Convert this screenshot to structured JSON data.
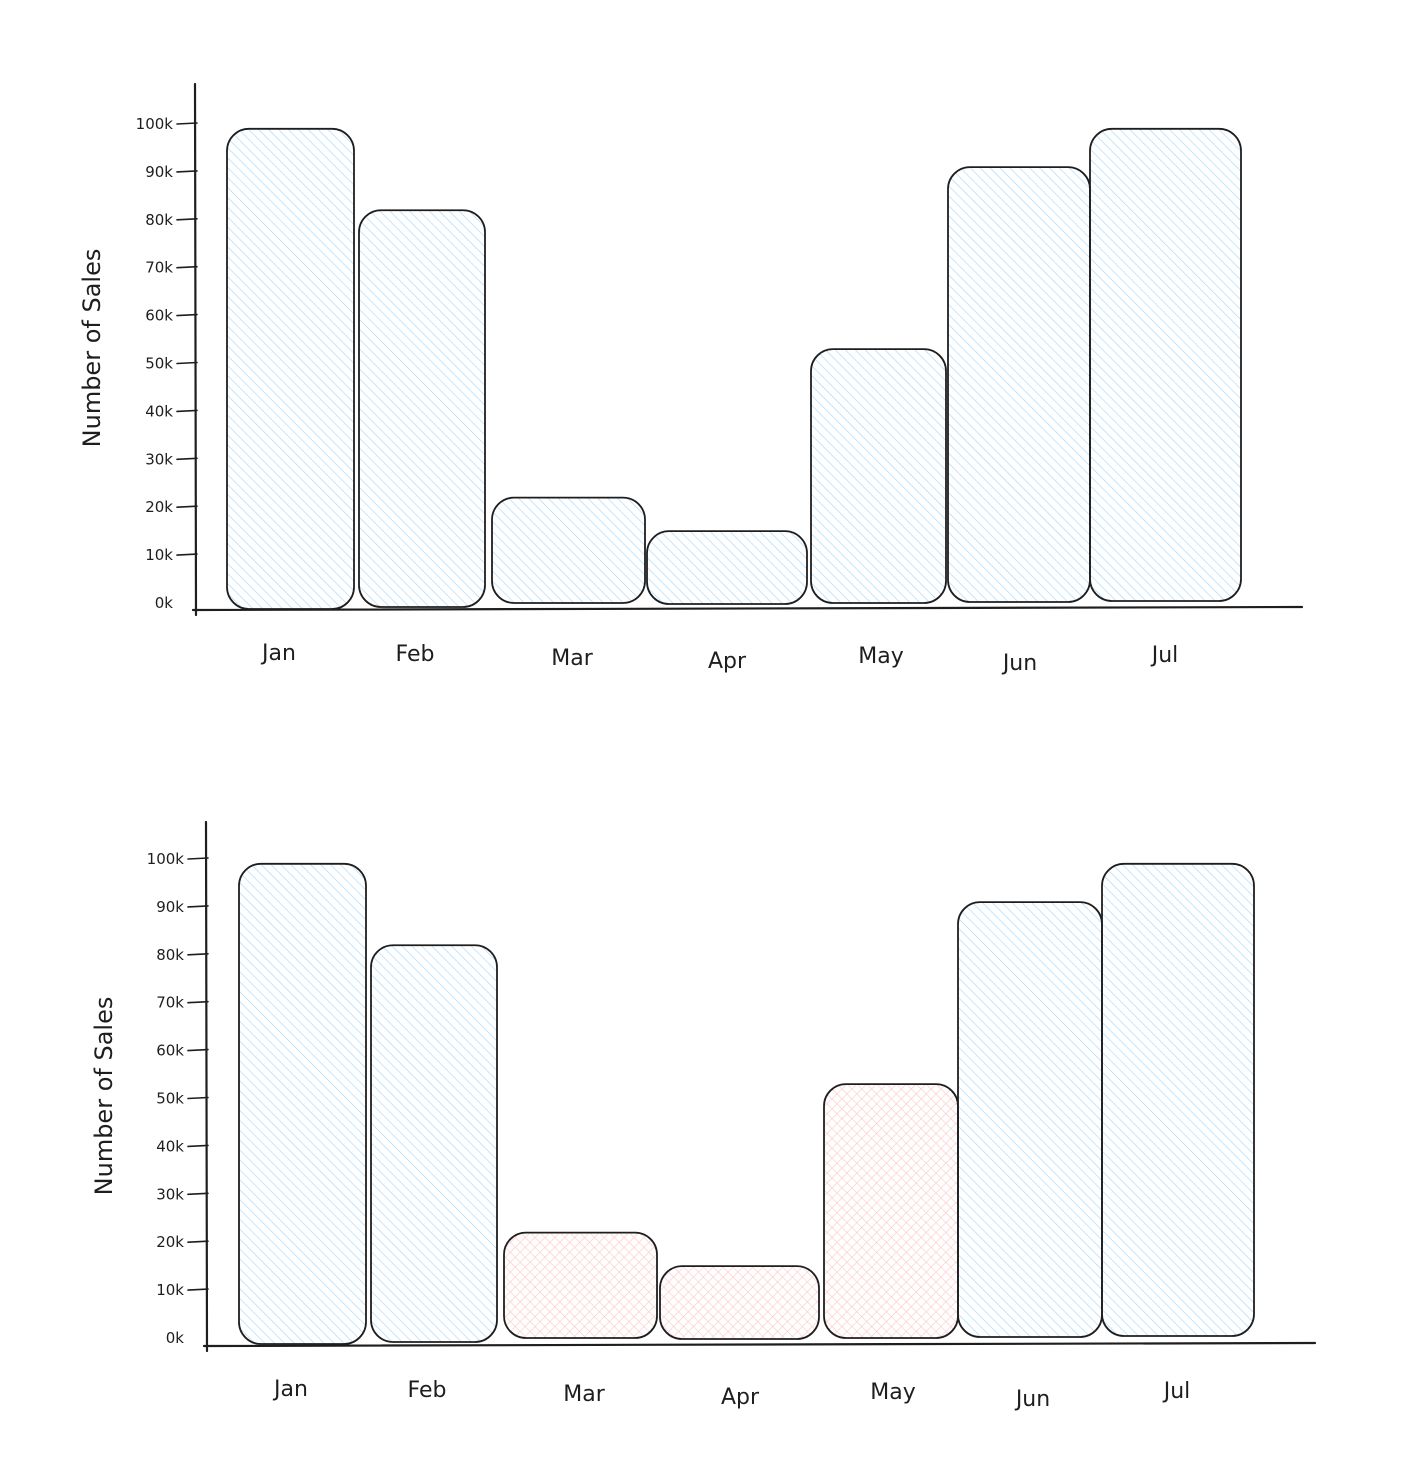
{
  "colors": {
    "ink": "#1e1e1e",
    "bar_fill": "#a5d8ff",
    "highlight_fill": "#ffc9c9"
  },
  "chart_data": [
    {
      "type": "bar",
      "title": "",
      "xlabel": "",
      "ylabel": "Number of Sales",
      "ylim": [
        0,
        100000
      ],
      "y_ticks": [
        "0k",
        "10k",
        "20k",
        "30k",
        "40k",
        "50k",
        "60k",
        "70k",
        "80k",
        "90k",
        "100k"
      ],
      "categories": [
        "Jan",
        "Feb",
        "Mar",
        "Apr",
        "May",
        "Jun",
        "Jul"
      ],
      "values": [
        99000,
        82000,
        22000,
        15000,
        53000,
        91000,
        99000
      ],
      "fill_style": "hachure",
      "highlighted": []
    },
    {
      "type": "bar",
      "title": "",
      "xlabel": "",
      "ylabel": "Number of Sales",
      "ylim": [
        0,
        100000
      ],
      "y_ticks": [
        "0k",
        "10k",
        "20k",
        "30k",
        "40k",
        "50k",
        "60k",
        "70k",
        "80k",
        "90k",
        "100k"
      ],
      "categories": [
        "Jan",
        "Feb",
        "Mar",
        "Apr",
        "May",
        "Jun",
        "Jul"
      ],
      "values": [
        99000,
        82000,
        22000,
        15000,
        53000,
        91000,
        99000
      ],
      "fill_style": "hachure",
      "highlighted": [
        "Mar",
        "Apr",
        "May"
      ]
    }
  ]
}
